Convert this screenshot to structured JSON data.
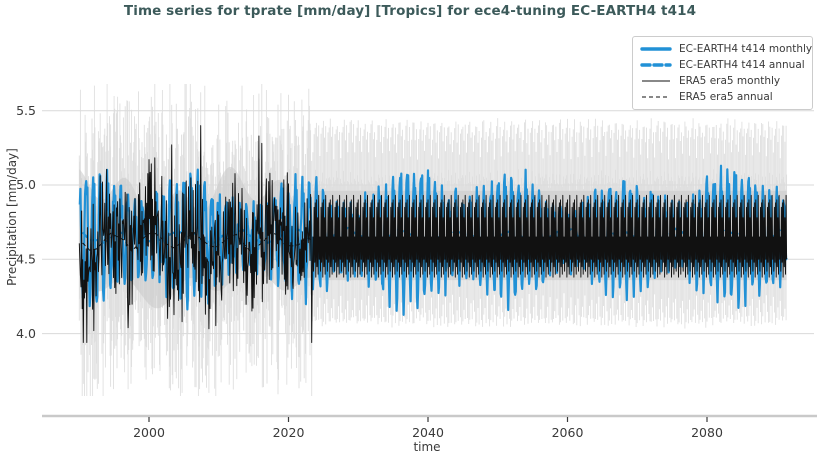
{
  "title": {
    "text": "Time series for tprate [mm/day] [Tropics] for ece4-tuning EC-EARTH4 t414"
  },
  "axes": {
    "xlabel": "time",
    "ylabel": "Precipitation [mm/day]",
    "xtick_labels": [
      "2000",
      "2020",
      "2040",
      "2060",
      "2080"
    ],
    "ytick_labels": [
      "4.0",
      "4.5",
      "5.0",
      "5.5"
    ]
  },
  "legend": {
    "entries": [
      {
        "label": "EC-EARTH4 t414 monthly",
        "color": "#2191d6",
        "dash": "",
        "width": 3.4
      },
      {
        "label": "EC-EARTH4 t414 annual",
        "color": "#2191d6",
        "dash": "8,4",
        "width": 3.4
      },
      {
        "label": "ERA5 era5 monthly",
        "color": "#111111",
        "dash": "",
        "width": 1.1
      },
      {
        "label": "ERA5 era5 annual",
        "color": "#111111",
        "dash": "4,3",
        "width": 1.1
      }
    ]
  },
  "colors": {
    "title": "#3c5a5a",
    "tick_label": "#3a3a3a",
    "grid": "#d9d9d9",
    "axis_line": "#c9c9c9",
    "tick_mark": "#3a3a3a",
    "background": "#ffffff",
    "blue": "#2191d6",
    "black": "#111111",
    "whisker": "#dcdcdc",
    "band": "#c9c9c9",
    "legend_border": "#cccccc"
  },
  "chart_data": {
    "type": "line",
    "title": "Time series for tprate [mm/day] [Tropics] for ece4-tuning EC-EARTH4 t414",
    "xlabel": "time",
    "ylabel": "Precipitation [mm/day]",
    "x_range": [
      1990.0,
      2091.45
    ],
    "ylim": [
      3.45,
      6.0
    ],
    "xticks": [
      2000,
      2020,
      2040,
      2060,
      2080
    ],
    "yticks": [
      4.0,
      4.5,
      5.0,
      5.5
    ],
    "grid": "horizontal-only",
    "legend_position": "upper-right",
    "transition_year": 2023.42,
    "series": [
      {
        "name": "EC-EARTH4 t414 monthly",
        "color": "#2191d6",
        "style": "solid",
        "width": 2.2,
        "start": 1990.05,
        "end": 2091.45,
        "estimated_mean": 4.64,
        "estimated_range": [
          4.08,
          5.13
        ],
        "seasonal_pattern": [
          0.95,
          0.55,
          0.8,
          0.15,
          -0.25,
          -0.7,
          -0.95,
          -0.75,
          -0.35,
          0.1,
          0.5,
          0.85
        ],
        "seasonal_amplitude": 0.33,
        "noise_sigma": 0.08
      },
      {
        "name": "EC-EARTH4 t414 annual",
        "color": "#2191d6",
        "style": "dashed",
        "width": 2.2,
        "start": 1990.5,
        "end": 2090.5,
        "estimated_mean": 4.655,
        "estimated_range": [
          4.58,
          4.72
        ]
      },
      {
        "name": "ERA5 era5 monthly",
        "color": "#111111",
        "style": "solid",
        "width": 0.95,
        "start": 1990.0,
        "end": 2091.45,
        "observed_until": 2023.42,
        "estimated_mean": 4.6,
        "estimated_range_observed": [
          3.94,
          5.4
        ],
        "zigzag_pattern": [
          0.55,
          -0.5,
          0.3,
          -0.6,
          0.62,
          -0.28,
          0.4,
          -0.55,
          0.5,
          -0.35,
          0.6,
          -0.45
        ],
        "zigzag_scale": 0.3,
        "noise_sigma": 0.17,
        "anchors": [
          [
            1992.1,
            4.02
          ],
          [
            1997.0,
            4.04
          ],
          [
            2003.25,
            5.27
          ],
          [
            2007.4,
            5.4
          ],
          [
            2015.75,
            5.33
          ],
          [
            2016.2,
            5.28
          ],
          [
            2023.33,
            3.94
          ]
        ],
        "repeated_climatology_after_transition": [
          4.9,
          4.45,
          4.78,
          4.4,
          4.93,
          4.5,
          4.65,
          4.42,
          4.85,
          4.48,
          4.88,
          4.38
        ]
      },
      {
        "name": "ERA5 era5 annual",
        "color": "#111111",
        "style": "dashed",
        "width": 0.95,
        "start": 1990.5,
        "end": 2090.5,
        "estimated_mean": 4.63,
        "estimated_range": [
          4.55,
          4.7
        ],
        "constant_after_transition": 4.63
      }
    ],
    "uncertainty": {
      "whisker_range_early": [
        3.58,
        5.68
      ],
      "whisker_top_cycle": [
        5.42,
        5.02,
        5.3,
        4.98,
        5.38,
        5.05,
        5.2,
        5.0,
        5.33,
        5.02,
        5.4,
        5.08
      ],
      "whisker_bottom_cycle": [
        4.1,
        4.42,
        4.18,
        4.45,
        4.08,
        4.4,
        4.25,
        4.43,
        4.12,
        4.42,
        4.06,
        4.38
      ],
      "band_range_late": [
        4.36,
        4.96
      ],
      "band_range_early_approx": [
        4.3,
        5.15
      ]
    }
  }
}
